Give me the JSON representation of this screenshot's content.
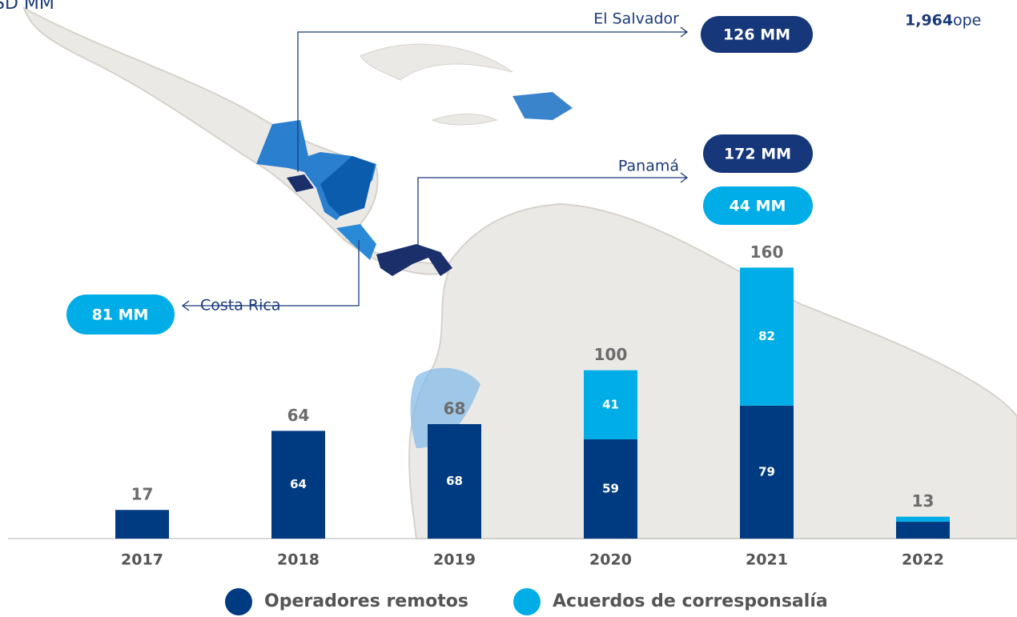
{
  "chart_data": {
    "type": "stacked_bar",
    "categories": [
      "2017",
      "2018",
      "2019",
      "2020",
      "2021",
      "2022"
    ],
    "series": [
      {
        "name": "Operadores remotos",
        "color": "#003a80",
        "values": [
          17,
          64,
          68,
          59,
          79,
          10
        ]
      },
      {
        "name": "Acuerdos de corresponsalía",
        "color": "#00ade6",
        "values": [
          null,
          null,
          null,
          41,
          82,
          3
        ]
      }
    ],
    "totals": [
      17,
      64,
      68,
      100,
      160,
      13
    ],
    "ylim": [
      0,
      320
    ],
    "annotations": {
      "top_left": "SD MM",
      "top_right_value": "1,964",
      "top_right_text": "ope",
      "el_salvador": {
        "country": "El Salvador",
        "value": "126 MM"
      },
      "panama": {
        "country": "Panamá",
        "value": "172 MM",
        "value2": "44 MM"
      },
      "costa_rica": {
        "country": "Costa Rica",
        "value": "81 MM"
      }
    }
  }
}
